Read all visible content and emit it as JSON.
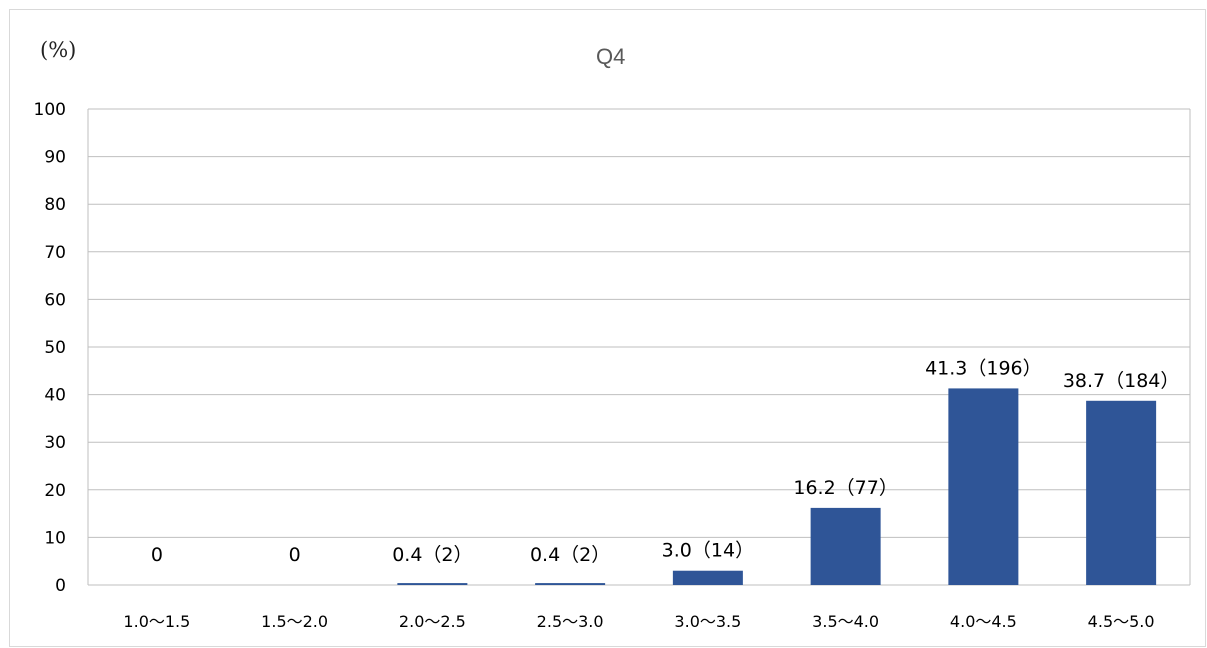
{
  "chart_data": {
    "type": "bar",
    "title": "Q4",
    "unit_label": "(%)",
    "xlabel": "",
    "ylabel": "",
    "ylim": [
      0,
      100
    ],
    "yticks": [
      0,
      10,
      20,
      30,
      40,
      50,
      60,
      70,
      80,
      90,
      100
    ],
    "grid": true,
    "legend": "none",
    "bar_color": "#2f5597",
    "categories": [
      "1.0〜1.5",
      "1.5〜2.0",
      "2.0〜2.5",
      "2.5〜3.0",
      "3.0〜3.5",
      "3.5〜4.0",
      "4.0〜4.5",
      "4.5〜5.0"
    ],
    "values": [
      0,
      0,
      0.4,
      0.4,
      3.0,
      16.2,
      41.3,
      38.7
    ],
    "data_labels": [
      "0",
      "0",
      "0.4（2）",
      "0.4（2）",
      "3.0（14）",
      "16.2（77）",
      "41.3（196）",
      "38.7（184）"
    ]
  }
}
